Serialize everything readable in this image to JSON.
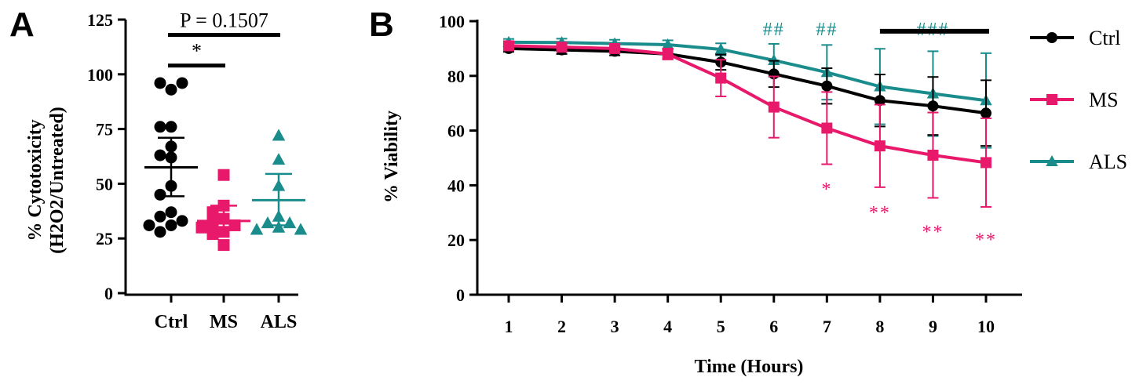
{
  "figure": {
    "panels": {
      "a": "A",
      "b": "B"
    }
  },
  "chart_data": [
    {
      "type": "scatter",
      "panel": "A",
      "ylabel": "% Cytotoxicity",
      "ylabel_line2": "(H2O2/Untreated)",
      "ylim": [
        0,
        125
      ],
      "yticks": [
        "0",
        "25",
        "50",
        "75",
        "100",
        "125"
      ],
      "categories": [
        "Ctrl",
        "MS",
        "ALS"
      ],
      "colors": {
        "Ctrl": "#000000",
        "MS": "#e8196b",
        "ALS": "#1a8c8c"
      },
      "series": [
        {
          "name": "Ctrl",
          "marker": "circle",
          "values": [
            93,
            96,
            96,
            76,
            76,
            67,
            63,
            62,
            49,
            45,
            37,
            35,
            33,
            31,
            31,
            28
          ],
          "mean": 57.5,
          "error": [
            44.3,
            71.0
          ]
        },
        {
          "name": "MS",
          "marker": "square",
          "values": [
            54,
            40,
            37,
            34,
            32,
            31,
            30,
            28,
            27,
            22
          ],
          "mean": 33.0,
          "error": [
            29.5,
            40.0
          ]
        },
        {
          "name": "ALS",
          "marker": "triangle",
          "values": [
            72,
            61,
            49,
            35,
            32,
            32,
            30,
            29,
            29
          ],
          "mean": 42.5,
          "error": [
            31.0,
            54.5
          ]
        }
      ],
      "annotations": [
        {
          "text": "*",
          "from": "Ctrl",
          "to": "MS",
          "level": 104
        },
        {
          "text": "P = 0.1507",
          "from": "Ctrl",
          "to": "ALS",
          "level": 118
        }
      ]
    },
    {
      "type": "line",
      "panel": "B",
      "xlabel": "Time (Hours)",
      "ylabel": "% Viability",
      "ylim": [
        0,
        100
      ],
      "yticks": [
        "0",
        "20",
        "40",
        "60",
        "80",
        "100"
      ],
      "x": [
        1,
        2,
        3,
        4,
        5,
        6,
        7,
        8,
        9,
        10
      ],
      "legend_position": "right",
      "series": [
        {
          "name": "Ctrl",
          "color": "#000000",
          "marker": "circle",
          "values": [
            90,
            89.5,
            89,
            88,
            85,
            80.7,
            76.3,
            71,
            69,
            66.4
          ],
          "errors": [
            1.2,
            1.5,
            1.5,
            1.8,
            2.8,
            4.8,
            6.5,
            9.5,
            10.6,
            12
          ]
        },
        {
          "name": "MS",
          "color": "#e8196b",
          "marker": "square",
          "values": [
            91,
            90.5,
            90,
            88,
            79.2,
            68.6,
            60.9,
            54.4,
            51,
            48.3
          ],
          "errors": [
            1.2,
            1.5,
            1.5,
            2,
            6.7,
            11.2,
            13.2,
            15.1,
            15.6,
            16.2
          ]
        },
        {
          "name": "ALS",
          "color": "#1a8c8c",
          "marker": "triangle",
          "values": [
            92.3,
            92.2,
            91.8,
            91.4,
            89.7,
            85.7,
            81.3,
            76.1,
            73.5,
            71
          ],
          "errors": [
            1.2,
            1.4,
            1.4,
            1.6,
            2.2,
            6,
            10,
            13.8,
            15.5,
            17.3
          ]
        }
      ],
      "annotations": [
        {
          "text": "##",
          "x": 6,
          "y": 100,
          "color": "#1a8c8c"
        },
        {
          "text": "##",
          "x": 7,
          "y": 100,
          "color": "#1a8c8c"
        },
        {
          "text": "###",
          "x": 9,
          "y": 100,
          "color": "#1a8c8c"
        },
        {
          "text": "*",
          "x": 7,
          "y": 41.5,
          "color": "#e8196b"
        },
        {
          "text": "**",
          "x": 8,
          "y": 33,
          "color": "#e8196b"
        },
        {
          "text": "**",
          "x": 9,
          "y": 26,
          "color": "#e8196b"
        },
        {
          "text": "**",
          "x": 10,
          "y": 23,
          "color": "#e8196b"
        }
      ],
      "bracket": {
        "from": 8,
        "to": 10,
        "y": 96.3
      }
    }
  ]
}
